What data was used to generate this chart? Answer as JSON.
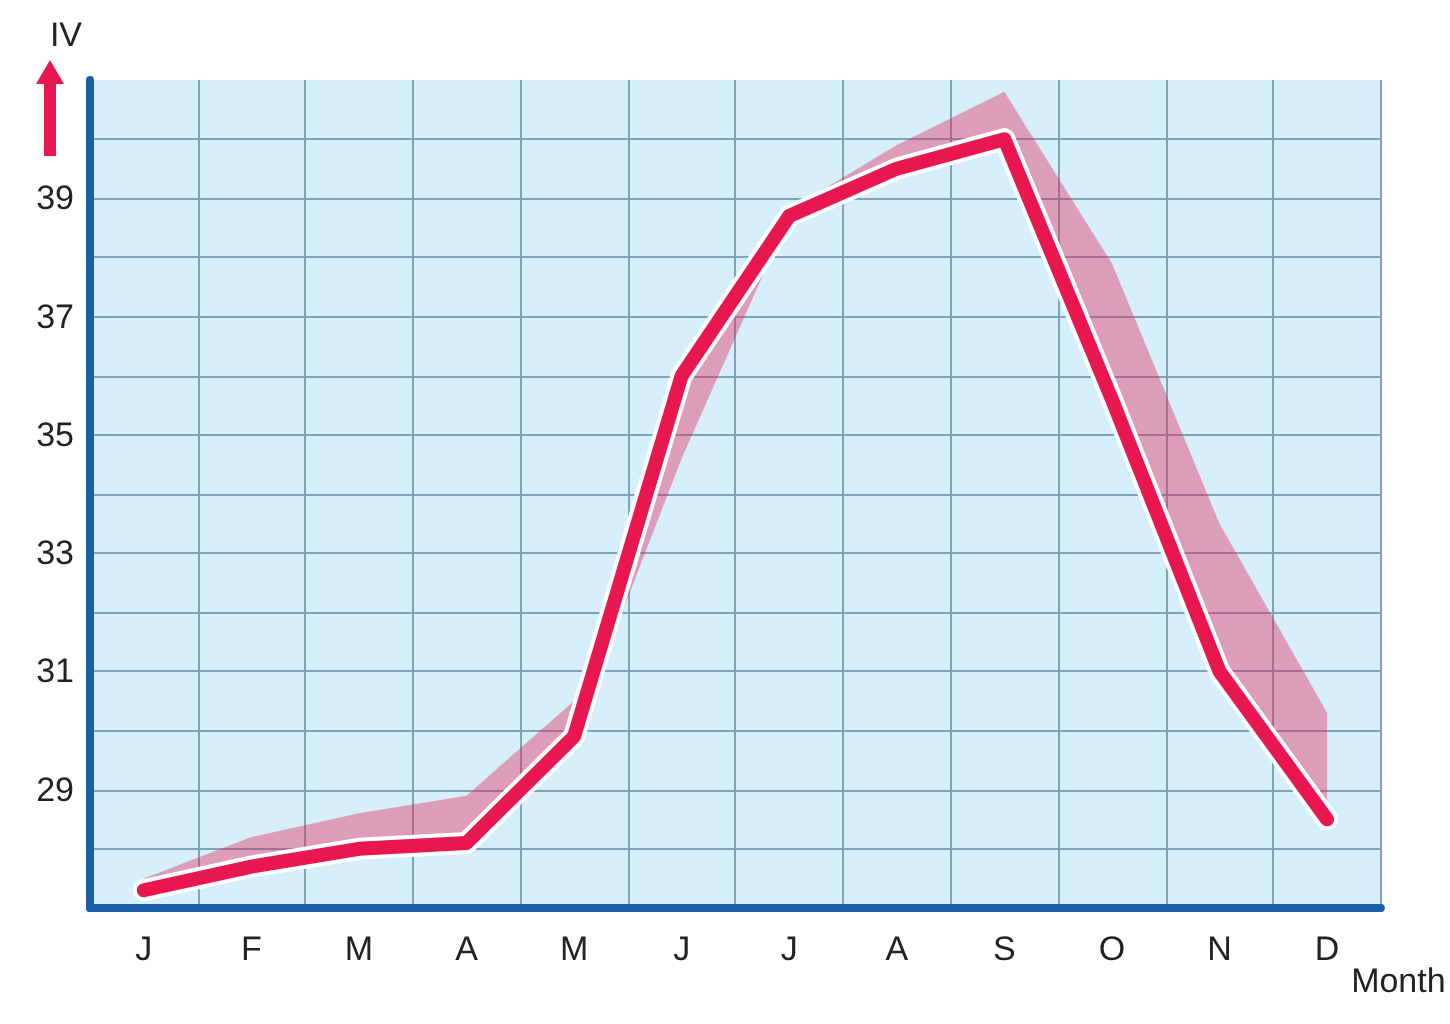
{
  "chart_data": {
    "type": "line",
    "xlabel": "Month",
    "ylabel": "IV",
    "categories": [
      "J",
      "F",
      "M",
      "A",
      "M",
      "J",
      "J",
      "A",
      "S",
      "O",
      "N",
      "D"
    ],
    "series": [
      {
        "color": "#e8174f",
        "values": [
          27.3,
          27.7,
          28.0,
          28.1,
          29.9,
          36.0,
          38.7,
          39.5,
          40.0,
          35.6,
          31.0,
          28.5
        ],
        "lower": [
          27.3,
          27.7,
          28.0,
          28.1,
          29.9,
          34.6,
          38.7,
          39.5,
          40.0,
          35.6,
          31.0,
          28.5
        ],
        "upper": [
          27.5,
          28.2,
          28.6,
          28.9,
          30.5,
          36.0,
          38.8,
          39.9,
          40.8,
          37.9,
          33.5,
          30.3
        ]
      }
    ],
    "ylim": [
      27,
      41
    ],
    "yticks": [
      {
        "value": 28,
        "label": null
      },
      29,
      {
        "value": 30,
        "label": null
      },
      31,
      {
        "value": 32,
        "label": null
      },
      33,
      {
        "value": 34,
        "label": null
      },
      35,
      {
        "value": 36,
        "label": null
      },
      37,
      {
        "value": 38,
        "label": null
      },
      39,
      {
        "value": 40,
        "label": null
      }
    ],
    "grid": true,
    "marker": "none",
    "line_style": "solid"
  }
}
